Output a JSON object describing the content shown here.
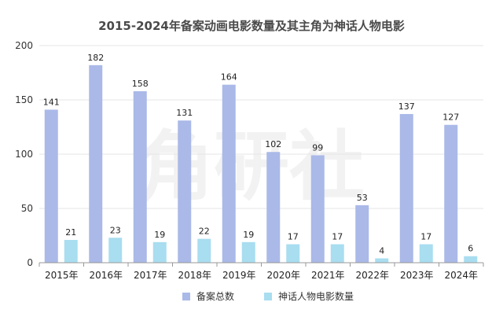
{
  "chart_data": {
    "type": "bar",
    "title": "2015-2024年备案动画电影数量及其主角为神话人物电影",
    "xlabel": "",
    "ylabel": "",
    "categories": [
      "2015年",
      "2016年",
      "2017年",
      "2018年",
      "2019年",
      "2020年",
      "2021年",
      "2022年",
      "2023年",
      "2024年"
    ],
    "series": [
      {
        "name": "备案总数",
        "values": [
          141,
          182,
          158,
          131,
          164,
          102,
          99,
          53,
          137,
          127
        ],
        "color": "#aab9e8"
      },
      {
        "name": "神话人物电影数量",
        "values": [
          21,
          23,
          19,
          22,
          19,
          17,
          17,
          4,
          17,
          6
        ],
        "color": "#a9ddf0"
      }
    ],
    "ylim": [
      0,
      200
    ],
    "yticks": [
      0,
      50,
      100,
      150,
      200
    ],
    "grid": true,
    "legend": "bottom-center",
    "data_labels": true,
    "watermark": "角研社"
  }
}
